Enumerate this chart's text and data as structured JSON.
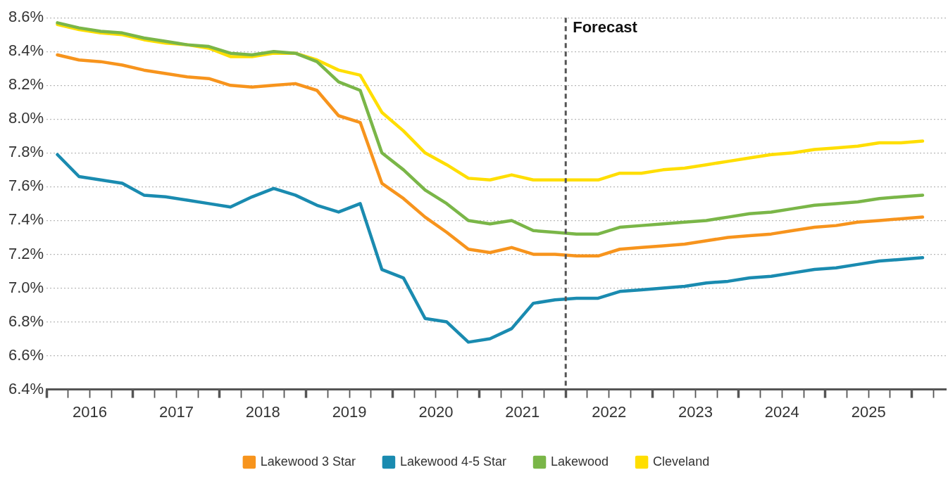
{
  "chart_data": {
    "type": "line",
    "marker": "none",
    "grid": "y",
    "legend": "bottom",
    "x": [
      2016.125,
      2016.375,
      2016.625,
      2016.875,
      2017.125,
      2017.375,
      2017.625,
      2017.875,
      2018.125,
      2018.375,
      2018.625,
      2018.875,
      2019.125,
      2019.375,
      2019.625,
      2019.875,
      2020.125,
      2020.375,
      2020.625,
      2020.875,
      2021.125,
      2021.375,
      2021.625,
      2021.875,
      2022.125,
      2022.375,
      2022.625,
      2022.875,
      2023.125,
      2023.375,
      2023.625,
      2023.875,
      2024.125,
      2024.375,
      2024.625,
      2024.875,
      2025.125,
      2025.375,
      2025.625,
      2025.875,
      2026.125
    ],
    "xlim": [
      2016,
      2026.4
    ],
    "xticks": [
      {
        "value": 2016,
        "label": null
      },
      {
        "value": 2016.25,
        "label": null
      },
      {
        "value": 2016.5,
        "label": "2016"
      },
      {
        "value": 2016.75,
        "label": null
      },
      {
        "value": 2017,
        "label": null
      },
      {
        "value": 2017.25,
        "label": null
      },
      {
        "value": 2017.5,
        "label": "2017"
      },
      {
        "value": 2017.75,
        "label": null
      },
      {
        "value": 2018,
        "label": null
      },
      {
        "value": 2018.25,
        "label": null
      },
      {
        "value": 2018.5,
        "label": "2018"
      },
      {
        "value": 2018.75,
        "label": null
      },
      {
        "value": 2019,
        "label": null
      },
      {
        "value": 2019.25,
        "label": null
      },
      {
        "value": 2019.5,
        "label": "2019"
      },
      {
        "value": 2019.75,
        "label": null
      },
      {
        "value": 2020,
        "label": null
      },
      {
        "value": 2020.25,
        "label": null
      },
      {
        "value": 2020.5,
        "label": "2020"
      },
      {
        "value": 2020.75,
        "label": null
      },
      {
        "value": 2021,
        "label": null
      },
      {
        "value": 2021.25,
        "label": null
      },
      {
        "value": 2021.5,
        "label": "2021"
      },
      {
        "value": 2021.75,
        "label": null
      },
      {
        "value": 2022,
        "label": null
      },
      {
        "value": 2022.25,
        "label": null
      },
      {
        "value": 2022.5,
        "label": "2022"
      },
      {
        "value": 2022.75,
        "label": null
      },
      {
        "value": 2023,
        "label": null
      },
      {
        "value": 2023.25,
        "label": null
      },
      {
        "value": 2023.5,
        "label": "2023"
      },
      {
        "value": 2023.75,
        "label": null
      },
      {
        "value": 2024,
        "label": null
      },
      {
        "value": 2024.25,
        "label": null
      },
      {
        "value": 2024.5,
        "label": "2024"
      },
      {
        "value": 2024.75,
        "label": null
      },
      {
        "value": 2025,
        "label": null
      },
      {
        "value": 2025.25,
        "label": null
      },
      {
        "value": 2025.5,
        "label": "2025"
      },
      {
        "value": 2025.75,
        "label": null
      },
      {
        "value": 2026,
        "label": null
      },
      {
        "value": 2026.25,
        "label": null
      }
    ],
    "ylim": [
      6.4,
      8.6
    ],
    "yticks": [
      {
        "value": 6.4,
        "label": "6.4%"
      },
      {
        "value": 6.6,
        "label": "6.6%"
      },
      {
        "value": 6.8,
        "label": "6.8%"
      },
      {
        "value": 7.0,
        "label": "7.0%"
      },
      {
        "value": 7.2,
        "label": "7.2%"
      },
      {
        "value": 7.4,
        "label": "7.4%"
      },
      {
        "value": 7.6,
        "label": "7.6%"
      },
      {
        "value": 7.8,
        "label": "7.8%"
      },
      {
        "value": 8.0,
        "label": "8.0%"
      },
      {
        "value": 8.2,
        "label": "8.2%"
      },
      {
        "value": 8.4,
        "label": "8.4%"
      },
      {
        "value": 8.6,
        "label": "8.6%"
      }
    ],
    "ref_lines": [
      {
        "axis": "x",
        "value": 2022,
        "label": "Forecast",
        "color": "#555555",
        "line_style": "dashed"
      }
    ],
    "series": [
      {
        "name": "Lakewood 3 Star",
        "color": "#f7941d",
        "values": [
          8.38,
          8.35,
          8.34,
          8.32,
          8.29,
          8.27,
          8.25,
          8.24,
          8.2,
          8.19,
          8.2,
          8.21,
          8.17,
          8.02,
          7.98,
          7.62,
          7.53,
          7.42,
          7.33,
          7.23,
          7.21,
          7.24,
          7.2,
          7.2,
          7.19,
          7.19,
          7.23,
          7.24,
          7.25,
          7.26,
          7.28,
          7.3,
          7.31,
          7.32,
          7.34,
          7.36,
          7.37,
          7.39,
          7.4,
          7.41,
          7.42
        ]
      },
      {
        "name": "Lakewood 4-5 Star",
        "color": "#1a8bb0",
        "values": [
          7.79,
          7.66,
          7.64,
          7.62,
          7.55,
          7.54,
          7.52,
          7.5,
          7.48,
          7.54,
          7.59,
          7.55,
          7.49,
          7.45,
          7.5,
          7.11,
          7.06,
          6.82,
          6.8,
          6.68,
          6.7,
          6.76,
          6.91,
          6.93,
          6.94,
          6.94,
          6.98,
          6.99,
          7.0,
          7.01,
          7.03,
          7.04,
          7.06,
          7.07,
          7.09,
          7.11,
          7.12,
          7.14,
          7.16,
          7.17,
          7.18
        ]
      },
      {
        "name": "Lakewood",
        "color": "#7ab648",
        "values": [
          8.57,
          8.54,
          8.52,
          8.51,
          8.48,
          8.46,
          8.44,
          8.43,
          8.39,
          8.38,
          8.4,
          8.39,
          8.34,
          8.22,
          8.17,
          7.8,
          7.7,
          7.58,
          7.5,
          7.4,
          7.38,
          7.4,
          7.34,
          7.33,
          7.32,
          7.32,
          7.36,
          7.37,
          7.38,
          7.39,
          7.4,
          7.42,
          7.44,
          7.45,
          7.47,
          7.49,
          7.5,
          7.51,
          7.53,
          7.54,
          7.55
        ]
      },
      {
        "name": "Cleveland",
        "color": "#ffde00",
        "values": [
          8.56,
          8.53,
          8.51,
          8.5,
          8.47,
          8.45,
          8.44,
          8.42,
          8.37,
          8.37,
          8.39,
          8.39,
          8.35,
          8.29,
          8.26,
          8.04,
          7.93,
          7.8,
          7.73,
          7.65,
          7.64,
          7.67,
          7.64,
          7.64,
          7.64,
          7.64,
          7.68,
          7.68,
          7.7,
          7.71,
          7.73,
          7.75,
          7.77,
          7.79,
          7.8,
          7.82,
          7.83,
          7.84,
          7.86,
          7.86,
          7.87
        ]
      }
    ]
  }
}
